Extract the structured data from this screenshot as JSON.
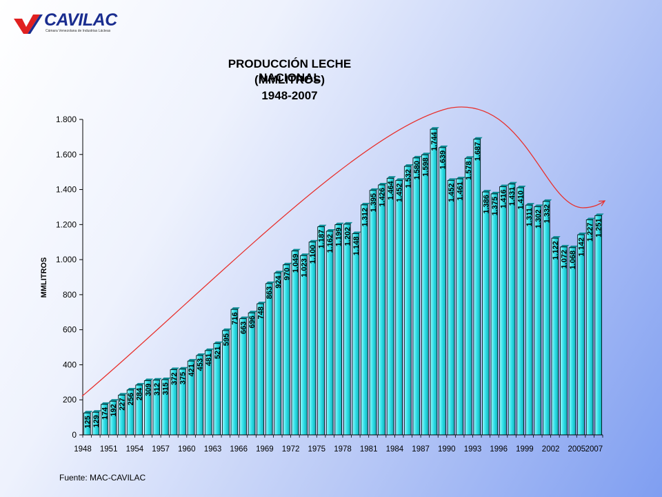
{
  "logo": {
    "brand": "CAVILAC",
    "tagline": "Cámara Venezolana de Industrias Lácteas",
    "colors": [
      "#e02020",
      "#1a2d8f"
    ]
  },
  "source": "Fuente: MAC-CAVILAC",
  "chart_data": {
    "type": "bar",
    "title": [
      "PRODUCCIÓN LECHE NACIONAL",
      "(MMLITROS)",
      "1948-2007"
    ],
    "ylabel": "MMLITROS",
    "xlabel": "",
    "ylim": [
      0,
      1800
    ],
    "yticks": [
      0,
      200,
      400,
      600,
      800,
      1000,
      1200,
      1400,
      1600,
      1800
    ],
    "ytick_labels": [
      "0",
      "200",
      "400",
      "600",
      "800",
      "1.000",
      "1.200",
      "1.400",
      "1.600",
      "1.800"
    ],
    "xtick_labels": [
      "1948",
      "1951",
      "1954",
      "1957",
      "1960",
      "1963",
      "1966",
      "1969",
      "1972",
      "1975",
      "1978",
      "1981",
      "1984",
      "1987",
      "1990",
      "1993",
      "1996",
      "1999",
      "2002",
      "2005",
      "2007"
    ],
    "bar_color": "#2ee0e8",
    "trend_color": "#e8302c",
    "grid": false,
    "legend": "none",
    "categories": [
      "1948",
      "1949",
      "1950",
      "1951",
      "1952",
      "1953",
      "1954",
      "1955",
      "1956",
      "1957",
      "1958",
      "1959",
      "1960",
      "1961",
      "1962",
      "1963",
      "1964",
      "1965",
      "1966",
      "1967",
      "1968",
      "1969",
      "1970",
      "1971",
      "1972",
      "1973",
      "1974",
      "1975",
      "1976",
      "1977",
      "1978",
      "1979",
      "1980",
      "1981",
      "1982",
      "1983",
      "1984",
      "1985",
      "1986",
      "1987",
      "1988",
      "1989",
      "1990",
      "1991",
      "1992",
      "1993",
      "1994",
      "1995",
      "1996",
      "1997",
      "1998",
      "1999",
      "2000",
      "2001",
      "2002",
      "2003",
      "2004",
      "2005",
      "2006",
      "2007"
    ],
    "values": [
      125,
      129,
      174,
      192,
      227,
      256,
      284,
      309,
      312,
      315,
      372,
      375,
      421,
      453,
      481,
      521,
      595,
      716,
      663,
      696,
      748,
      863,
      924,
      970,
      1049,
      1023,
      1100,
      1187,
      1162,
      1199,
      1202,
      1148,
      1312,
      1395,
      1426,
      1464,
      1452,
      1532,
      1580,
      1598,
      1744,
      1639,
      1452,
      1461,
      1578,
      1687,
      1386,
      1375,
      1416,
      1431,
      1410,
      1311,
      1302,
      1332,
      1122,
      1072,
      1068,
      1142,
      1227,
      1251
    ],
    "labels": [
      "125",
      "129",
      "174",
      "192",
      "227",
      "256",
      "284",
      "309",
      "312",
      "315",
      "372",
      "375",
      "421",
      "453",
      "481",
      "521",
      "595",
      "716",
      "663",
      "696",
      "748",
      "863",
      "924",
      "970",
      "1.049",
      "1.023",
      "1.100",
      "1.187",
      "1.162",
      "1.199",
      "1.202",
      "1.148",
      "1.312",
      "1.395",
      "1.426",
      "1.464",
      "1.452",
      "1.532",
      "1.580",
      "1.598",
      "1.744",
      "1.639",
      "1.452",
      "1.461",
      "1.578",
      "1.687",
      "1.386",
      "1.375",
      "1.416",
      "1.431",
      "1.410",
      "1.311",
      "1.302",
      "1.332",
      "1.122",
      "1.072",
      "1.068",
      "1.142",
      "1.227",
      "1.251"
    ]
  }
}
